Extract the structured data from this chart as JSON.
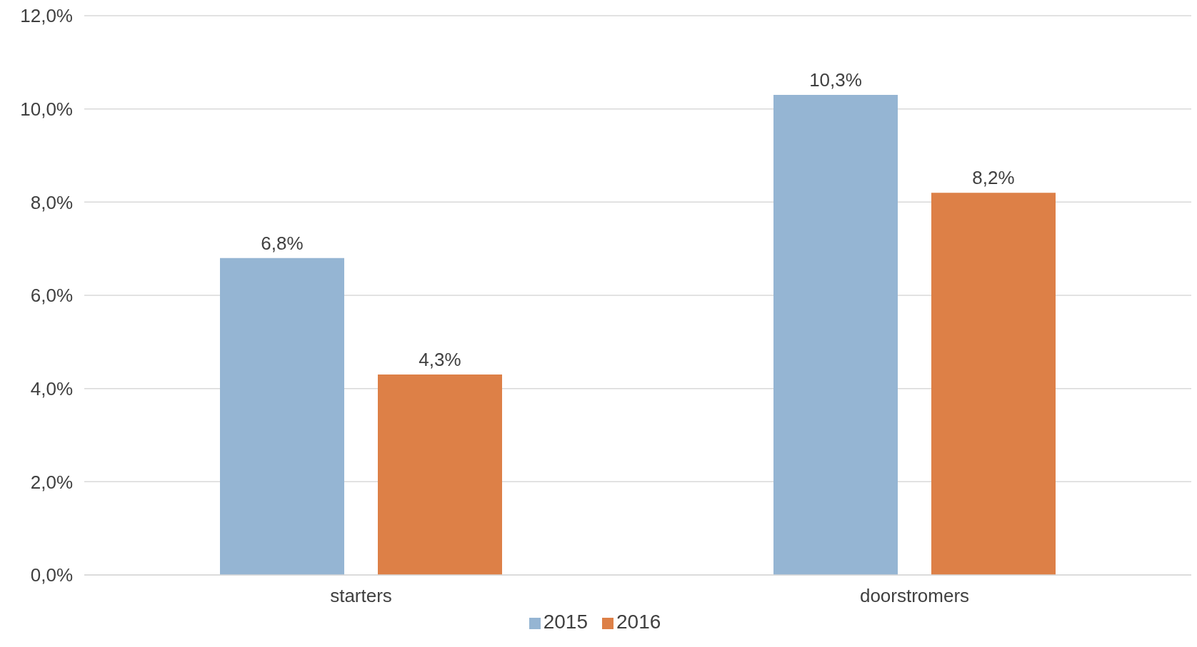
{
  "chart_data": {
    "type": "bar",
    "categories": [
      "starters",
      "doorstromers"
    ],
    "series": [
      {
        "name": "2015",
        "color": "#95b5d3",
        "values": [
          6.8,
          10.3
        ],
        "value_labels": [
          "6,8%",
          "10,3%"
        ]
      },
      {
        "name": "2016",
        "color": "#dd8047",
        "values": [
          4.3,
          8.2
        ],
        "value_labels": [
          "4,3%",
          "8,2%"
        ]
      }
    ],
    "ylim": [
      0,
      12
    ],
    "yticks": [
      {
        "value": 0,
        "label": "0,0%"
      },
      {
        "value": 2,
        "label": "2,0%"
      },
      {
        "value": 4,
        "label": "4,0%"
      },
      {
        "value": 6,
        "label": "6,0%"
      },
      {
        "value": 8,
        "label": "8,0%"
      },
      {
        "value": 10,
        "label": "10,0%"
      },
      {
        "value": 12,
        "label": "12,0%"
      }
    ],
    "grid": "y",
    "legend": "bottom"
  }
}
